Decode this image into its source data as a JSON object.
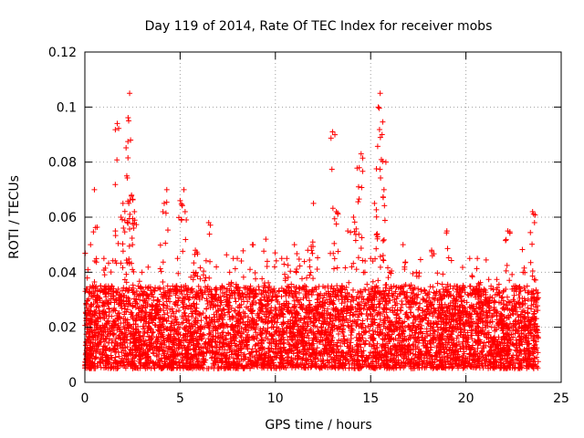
{
  "chart_data": {
    "type": "scatter",
    "title": "Day 119 of 2014, Rate Of TEC Index for receiver mobs",
    "xlabel": "GPS time / hours",
    "ylabel": "ROTI / TECUs",
    "xlim": [
      0,
      25
    ],
    "ylim": [
      0,
      0.12
    ],
    "grid": true,
    "x_ticks": [
      "0",
      "5",
      "10",
      "15",
      "20",
      "25"
    ],
    "y_ticks": [
      "0",
      "0.02",
      "0.04",
      "0.06",
      "0.08",
      "0.1",
      "0.12"
    ],
    "marker": "+",
    "series": [
      {
        "name": "ROTI",
        "color": "#ff0000",
        "x": [
          0.1,
          0.2,
          0.3,
          0.4,
          0.5,
          0.6,
          0.8,
          1.0,
          1.2,
          1.4,
          1.6,
          1.7,
          1.8,
          1.9,
          2.0,
          2.1,
          2.2,
          2.3,
          2.35,
          2.4,
          2.45,
          2.5,
          2.6,
          2.7,
          2.8,
          3.0,
          3.2,
          3.5,
          3.8,
          4.1,
          4.3,
          4.5,
          4.8,
          5.0,
          5.2,
          5.5,
          5.8,
          6.1,
          6.5,
          6.8,
          7.2,
          7.6,
          8.0,
          8.4,
          8.8,
          9.2,
          9.5,
          9.8,
          10.2,
          10.6,
          11.0,
          11.3,
          11.7,
          12.0,
          12.3,
          12.7,
          13.0,
          13.2,
          13.5,
          13.8,
          14.1,
          14.4,
          14.5,
          14.7,
          15.0,
          15.2,
          15.4,
          15.5,
          15.6,
          15.7,
          15.8,
          16.0,
          16.3,
          16.7,
          17.0,
          17.4,
          17.8,
          18.2,
          18.6,
          19.0,
          19.4,
          19.8,
          20.2,
          20.6,
          21.0,
          21.4,
          21.8,
          22.2,
          22.6,
          23.0,
          23.3,
          23.5,
          23.6,
          23.7
        ],
        "y": [
          0.012,
          0.025,
          0.05,
          0.018,
          0.07,
          0.03,
          0.02,
          0.045,
          0.022,
          0.035,
          0.055,
          0.094,
          0.03,
          0.06,
          0.065,
          0.02,
          0.075,
          0.095,
          0.105,
          0.088,
          0.068,
          0.05,
          0.062,
          0.03,
          0.018,
          0.04,
          0.015,
          0.025,
          0.03,
          0.062,
          0.07,
          0.02,
          0.035,
          0.066,
          0.07,
          0.028,
          0.048,
          0.02,
          0.058,
          0.022,
          0.035,
          0.04,
          0.045,
          0.025,
          0.05,
          0.03,
          0.052,
          0.02,
          0.033,
          0.045,
          0.05,
          0.03,
          0.048,
          0.065,
          0.025,
          0.03,
          0.091,
          0.062,
          0.035,
          0.055,
          0.06,
          0.078,
          0.083,
          0.04,
          0.045,
          0.065,
          0.1,
          0.105,
          0.09,
          0.07,
          0.08,
          0.04,
          0.028,
          0.05,
          0.02,
          0.04,
          0.03,
          0.048,
          0.025,
          0.055,
          0.035,
          0.028,
          0.045,
          0.045,
          0.03,
          0.022,
          0.025,
          0.055,
          0.035,
          0.04,
          0.022,
          0.062,
          0.058,
          0.03
        ]
      }
    ],
    "dense_band": {
      "name": "background scatter",
      "y_min": 0.005,
      "y_max": 0.035,
      "x_start": 0,
      "x_end": 23.8,
      "note": "dense cloud of points between ~0.005 and ~0.035 across the full time range"
    }
  }
}
